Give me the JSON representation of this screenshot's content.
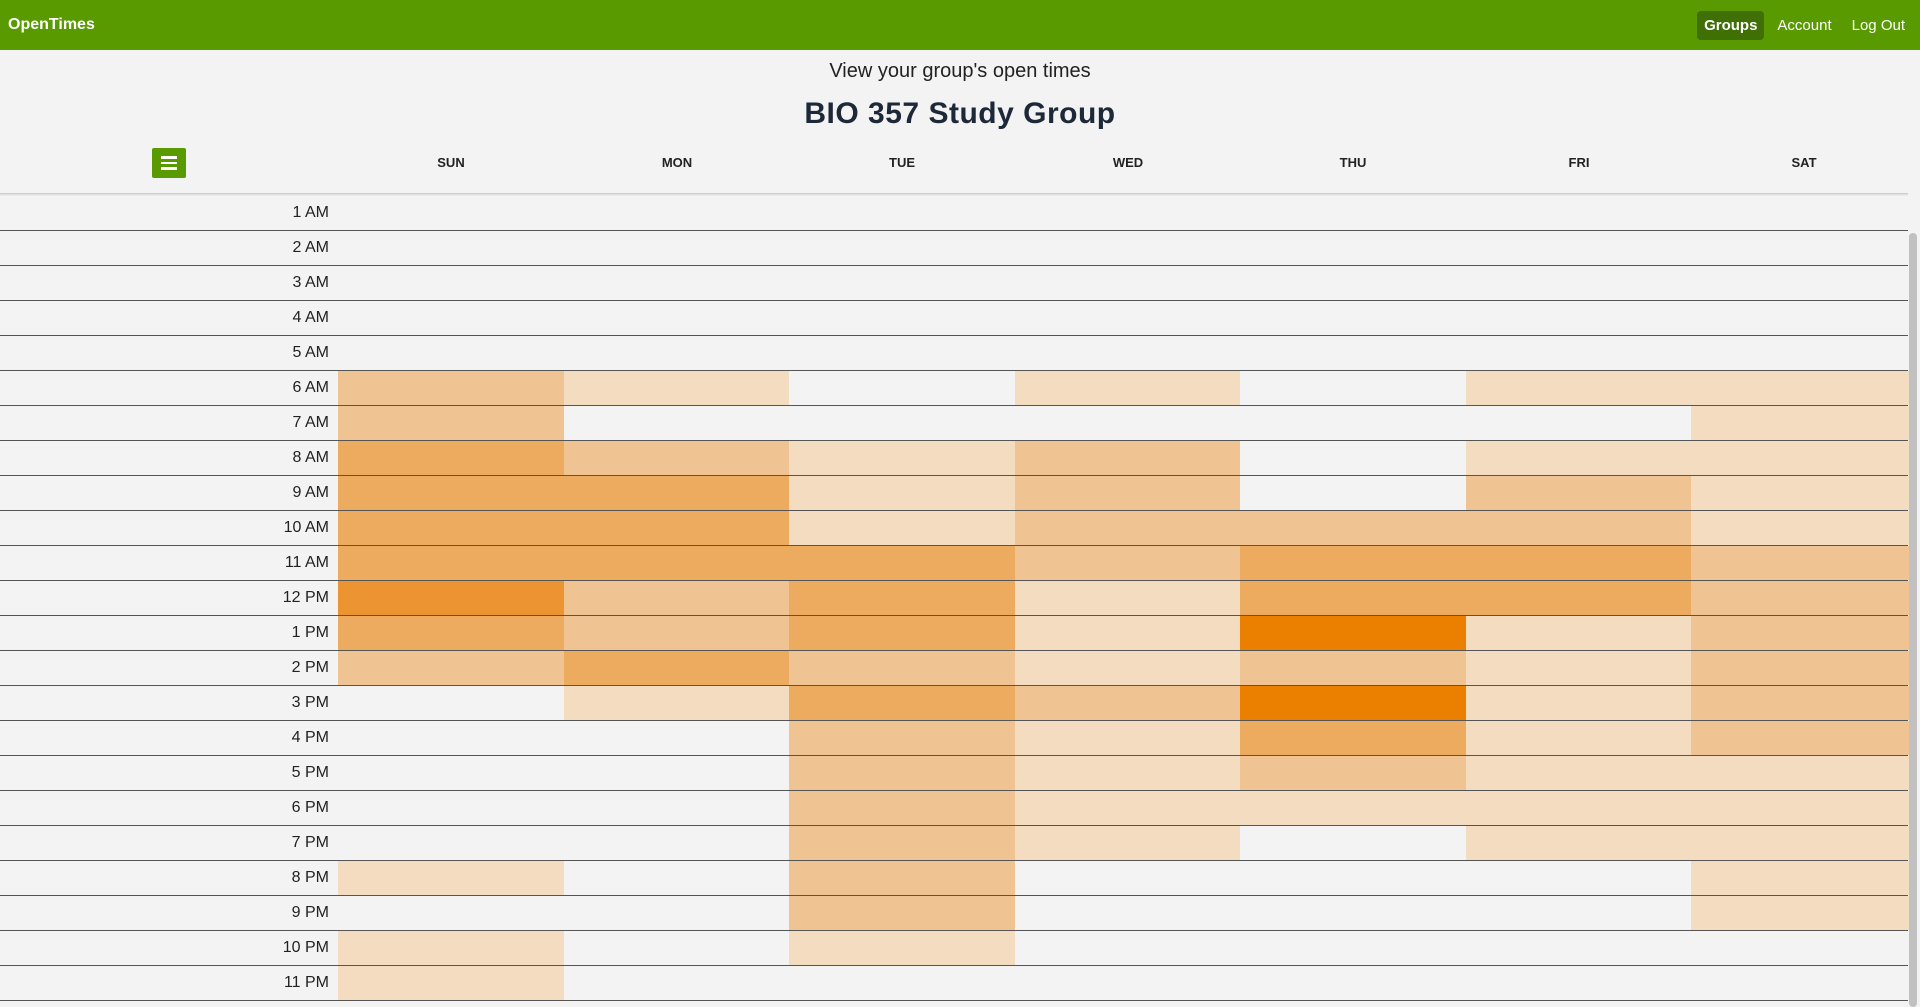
{
  "navbar": {
    "brand": "OpenTimes",
    "links": [
      "Groups",
      "Account",
      "Log Out"
    ]
  },
  "page": {
    "subtitle": "View your group's open times",
    "group_name": "BIO 357 Study Group"
  },
  "menu_icon": "hamburger-icon",
  "days": [
    "SUN",
    "MON",
    "TUE",
    "WED",
    "THU",
    "FRI",
    "SAT"
  ],
  "times": [
    "1 AM",
    "2 AM",
    "3 AM",
    "4 AM",
    "5 AM",
    "6 AM",
    "7 AM",
    "8 AM",
    "9 AM",
    "10 AM",
    "11 AM",
    "12 PM",
    "1 PM",
    "2 PM",
    "3 PM",
    "4 PM",
    "5 PM",
    "6 PM",
    "7 PM",
    "8 PM",
    "9 PM",
    "10 PM",
    "11 PM"
  ],
  "availability_levels": {
    "colors": [
      "#f3f3f3",
      "#f4dcc1",
      "#f0c392",
      "#edab5f",
      "#ec9332",
      "#eb7f00"
    ],
    "grid": [
      [
        0,
        0,
        0,
        0,
        0,
        0,
        0
      ],
      [
        0,
        0,
        0,
        0,
        0,
        0,
        0
      ],
      [
        0,
        0,
        0,
        0,
        0,
        0,
        0
      ],
      [
        0,
        0,
        0,
        0,
        0,
        0,
        0
      ],
      [
        0,
        0,
        0,
        0,
        0,
        0,
        0
      ],
      [
        2,
        1,
        0,
        1,
        0,
        1,
        1
      ],
      [
        2,
        0,
        0,
        0,
        0,
        0,
        1
      ],
      [
        3,
        2,
        1,
        2,
        0,
        1,
        1
      ],
      [
        3,
        3,
        1,
        2,
        0,
        2,
        1
      ],
      [
        3,
        3,
        1,
        2,
        2,
        2,
        1
      ],
      [
        3,
        3,
        3,
        2,
        3,
        3,
        2
      ],
      [
        4,
        2,
        3,
        1,
        3,
        3,
        2
      ],
      [
        3,
        2,
        3,
        1,
        5,
        1,
        2
      ],
      [
        2,
        3,
        2,
        1,
        2,
        1,
        2
      ],
      [
        0,
        1,
        3,
        2,
        5,
        1,
        2
      ],
      [
        0,
        0,
        2,
        1,
        3,
        1,
        2
      ],
      [
        0,
        0,
        2,
        1,
        2,
        1,
        1
      ],
      [
        0,
        0,
        2,
        1,
        1,
        1,
        1
      ],
      [
        0,
        0,
        2,
        1,
        0,
        1,
        1
      ],
      [
        1,
        0,
        2,
        0,
        0,
        0,
        1
      ],
      [
        0,
        0,
        2,
        0,
        0,
        0,
        1
      ],
      [
        1,
        0,
        1,
        0,
        0,
        0,
        0
      ],
      [
        1,
        0,
        0,
        0,
        0,
        0,
        0
      ]
    ]
  }
}
